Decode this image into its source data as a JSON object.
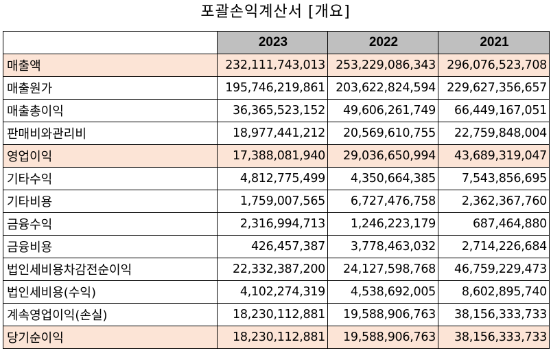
{
  "title": "포괄손익계산서 [개요]",
  "columns": [
    "",
    "2023",
    "2022",
    "2021"
  ],
  "rows": [
    {
      "label": "매출액",
      "values": [
        "232,111,743,013",
        "253,229,086,343",
        "296,076,523,708"
      ],
      "highlight": true
    },
    {
      "label": "매출원가",
      "values": [
        "195,746,219,861",
        "203,622,824,594",
        "229,627,356,657"
      ],
      "highlight": false
    },
    {
      "label": "매출총이익",
      "values": [
        "36,365,523,152",
        "49,606,261,749",
        "66,449,167,051"
      ],
      "highlight": false
    },
    {
      "label": "판매비와관리비",
      "values": [
        "18,977,441,212",
        "20,569,610,755",
        "22,759,848,004"
      ],
      "highlight": false
    },
    {
      "label": "영업이익",
      "values": [
        "17,388,081,940",
        "29,036,650,994",
        "43,689,319,047"
      ],
      "highlight": true
    },
    {
      "label": "기타수익",
      "values": [
        "4,812,775,499",
        "4,350,664,385",
        "7,543,856,695"
      ],
      "highlight": false
    },
    {
      "label": "기타비용",
      "values": [
        "1,759,007,565",
        "6,727,476,758",
        "2,362,367,760"
      ],
      "highlight": false
    },
    {
      "label": "금융수익",
      "values": [
        "2,316,994,713",
        "1,246,223,179",
        "687,464,880"
      ],
      "highlight": false
    },
    {
      "label": "금융비용",
      "values": [
        "426,457,387",
        "3,778,463,032",
        "2,714,226,684"
      ],
      "highlight": false
    },
    {
      "label": "법인세비용차감전순이익",
      "values": [
        "22,332,387,200",
        "24,127,598,768",
        "46,759,229,473"
      ],
      "highlight": false
    },
    {
      "label": "법인세비용(수익)",
      "values": [
        "4,102,274,319",
        "4,538,692,005",
        "8,602,895,740"
      ],
      "highlight": false
    },
    {
      "label": "계속영업이익(손실)",
      "values": [
        "18,230,112,881",
        "19,588,906,763",
        "38,156,333,733"
      ],
      "highlight": false
    },
    {
      "label": "당기순이익",
      "values": [
        "18,230,112,881",
        "19,588,906,763",
        "38,156,333,733"
      ],
      "highlight": true
    }
  ],
  "colors": {
    "header_bg": "#bfbfbf",
    "highlight_bg": "#fce4d6",
    "border": "#000000"
  }
}
